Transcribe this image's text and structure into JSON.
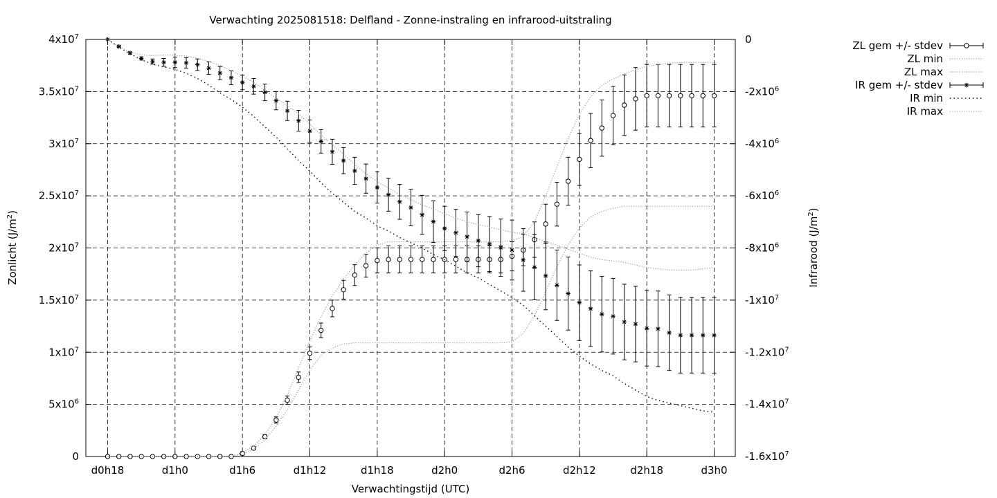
{
  "chart_data": {
    "type": "line",
    "title": "Verwachting 2025081518: Delfland - Zonne-instraling en infrarood-uitstraling",
    "xlabel": "Verwachtingstijd (UTC)",
    "ylabel": "Zonlicht (J/m²)",
    "ylabel_base": "Zonlicht (J/m",
    "ylabel_right": "Infrarood (J/m²)",
    "ylabel_right_base": "Infrarood (J/m",
    "ylabel_exp": "2",
    "ylabel_close": ")",
    "xlim": [
      18,
      72
    ],
    "ylim": [
      0,
      40000000
    ],
    "y2lim": [
      -16000000,
      0
    ],
    "grid": true,
    "legend_position": "top-right-outside",
    "x_ticks": [
      {
        "x": 18,
        "label": "d0h18"
      },
      {
        "x": 24,
        "label": "d1h0"
      },
      {
        "x": 30,
        "label": "d1h6"
      },
      {
        "x": 36,
        "label": "d1h12"
      },
      {
        "x": 42,
        "label": "d1h18"
      },
      {
        "x": 48,
        "label": "d2h0"
      },
      {
        "x": 54,
        "label": "d2h6"
      },
      {
        "x": 60,
        "label": "d2h12"
      },
      {
        "x": 66,
        "label": "d2h18"
      },
      {
        "x": 72,
        "label": "d3h0"
      }
    ],
    "y_ticks": [
      {
        "value": 0,
        "base": "0",
        "exp": ""
      },
      {
        "value": 5000000,
        "base": "5x10",
        "exp": "6"
      },
      {
        "value": 10000000,
        "base": "1x10",
        "exp": "7"
      },
      {
        "value": 15000000,
        "base": "1.5x10",
        "exp": "7"
      },
      {
        "value": 20000000,
        "base": "2x10",
        "exp": "7"
      },
      {
        "value": 25000000,
        "base": "2.5x10",
        "exp": "7"
      },
      {
        "value": 30000000,
        "base": "3x10",
        "exp": "7"
      },
      {
        "value": 35000000,
        "base": "3.5x10",
        "exp": "7"
      },
      {
        "value": 40000000,
        "base": "4x10",
        "exp": "7"
      }
    ],
    "y2_ticks": [
      {
        "value": 0,
        "base": "0",
        "exp": ""
      },
      {
        "value": -2000000,
        "base": "-2x10",
        "exp": "6"
      },
      {
        "value": -4000000,
        "base": "-4x10",
        "exp": "6"
      },
      {
        "value": -6000000,
        "base": "-6x10",
        "exp": "6"
      },
      {
        "value": -8000000,
        "base": "-8x10",
        "exp": "6"
      },
      {
        "value": -10000000,
        "base": "-1x10",
        "exp": "7"
      },
      {
        "value": -12000000,
        "base": "-1.2x10",
        "exp": "7"
      },
      {
        "value": -14000000,
        "base": "-1.4x10",
        "exp": "7"
      },
      {
        "value": -16000000,
        "base": "-1.6x10",
        "exp": "7"
      }
    ],
    "x": [
      18,
      19,
      20,
      21,
      22,
      23,
      24,
      25,
      26,
      27,
      28,
      29,
      30,
      31,
      32,
      33,
      34,
      35,
      36,
      37,
      38,
      39,
      40,
      41,
      42,
      43,
      44,
      45,
      46,
      47,
      48,
      49,
      50,
      51,
      52,
      53,
      54,
      55,
      56,
      57,
      58,
      59,
      60,
      61,
      62,
      63,
      64,
      65,
      66,
      67,
      68,
      69,
      70,
      71,
      72
    ],
    "series": [
      {
        "name": "ZL gem +/- stdev",
        "axis": "y",
        "marker": "circle",
        "values": [
          0,
          0,
          0,
          0,
          0,
          0,
          0,
          0,
          0,
          0,
          0,
          0,
          300000,
          800000,
          1900000,
          3500000,
          5400000,
          7600000,
          9900000,
          12100000,
          14200000,
          16000000,
          17400000,
          18300000,
          18800000,
          18900000,
          18900000,
          18900000,
          18900000,
          18900000,
          18900000,
          18900000,
          18900000,
          18900000,
          18900000,
          18900000,
          19200000,
          19800000,
          20800000,
          22300000,
          24200000,
          26400000,
          28500000,
          30300000,
          31500000,
          32700000,
          33700000,
          34300000,
          34600000,
          34600000,
          34600000,
          34600000,
          34600000,
          34600000,
          34600000
        ],
        "stdev": [
          0,
          0,
          0,
          0,
          0,
          0,
          0,
          0,
          0,
          0,
          0,
          0,
          150000,
          150000,
          200000,
          300000,
          400000,
          500000,
          600000,
          700000,
          800000,
          900000,
          1000000,
          1100000,
          1200000,
          1300000,
          1300000,
          1300000,
          1300000,
          1300000,
          1300000,
          1300000,
          1300000,
          1300000,
          1300000,
          1300000,
          1400000,
          1500000,
          1700000,
          1900000,
          2100000,
          2300000,
          2500000,
          2600000,
          2700000,
          2800000,
          2900000,
          3000000,
          3000000,
          3000000,
          3000000,
          3000000,
          3000000,
          3000000,
          3000000
        ]
      },
      {
        "name": "ZL min",
        "axis": "y",
        "style": "dotted-fine",
        "values": [
          0,
          0,
          0,
          0,
          0,
          0,
          0,
          0,
          0,
          0,
          0,
          0,
          200000,
          700000,
          1600000,
          2900000,
          4500000,
          6400000,
          8300000,
          9700000,
          10400000,
          10800000,
          10900000,
          10900000,
          10900000,
          10900000,
          10900000,
          10900000,
          10900000,
          10900000,
          10900000,
          10900000,
          10900000,
          10900000,
          10900000,
          10900000,
          11000000,
          11800000,
          13500000,
          15800000,
          18200000,
          20300000,
          21900000,
          23000000,
          23500000,
          23800000,
          24000000,
          24000000,
          24000000,
          24000000,
          24000000,
          24000000,
          24000000,
          24000000,
          24000000
        ]
      },
      {
        "name": "ZL max",
        "axis": "y",
        "style": "dotted-fine",
        "values": [
          0,
          0,
          0,
          0,
          0,
          0,
          0,
          0,
          0,
          0,
          0,
          0,
          400000,
          1000000,
          2100000,
          3700000,
          5900000,
          8500000,
          11100000,
          13400000,
          15400000,
          17000000,
          18400000,
          19500000,
          20300000,
          20600000,
          20600000,
          20600000,
          20600000,
          20600000,
          20600000,
          20600000,
          20600000,
          20600000,
          20600000,
          20600000,
          20700000,
          21100000,
          22500000,
          25000000,
          27800000,
          30500000,
          32800000,
          34500000,
          35600000,
          36200000,
          36700000,
          37100000,
          37400000,
          37600000,
          37700000,
          37800000,
          37800000,
          37800000,
          37800000
        ]
      },
      {
        "name": "IR gem +/- stdev",
        "axis": "y2",
        "marker": "star",
        "values": [
          0,
          -270000,
          -520000,
          -730000,
          -850000,
          -880000,
          -880000,
          -900000,
          -970000,
          -1100000,
          -1290000,
          -1470000,
          -1650000,
          -1800000,
          -2030000,
          -2350000,
          -2740000,
          -3120000,
          -3520000,
          -3910000,
          -4310000,
          -4650000,
          -5040000,
          -5340000,
          -5680000,
          -5960000,
          -6230000,
          -6450000,
          -6730000,
          -6990000,
          -7250000,
          -7420000,
          -7570000,
          -7720000,
          -7850000,
          -7990000,
          -8080000,
          -8460000,
          -8740000,
          -9070000,
          -9430000,
          -9750000,
          -10100000,
          -10330000,
          -10540000,
          -10620000,
          -10840000,
          -10920000,
          -11080000,
          -11100000,
          -11250000,
          -11350000,
          -11350000,
          -11350000,
          -11350000
        ],
        "stdev": [
          0,
          30000,
          40000,
          60000,
          100000,
          150000,
          200000,
          200000,
          220000,
          240000,
          250000,
          270000,
          280000,
          300000,
          320000,
          350000,
          370000,
          400000,
          430000,
          450000,
          480000,
          500000,
          520000,
          560000,
          600000,
          630000,
          670000,
          700000,
          750000,
          800000,
          850000,
          900000,
          950000,
          1000000,
          1050000,
          1100000,
          1150000,
          1200000,
          1250000,
          1300000,
          1350000,
          1400000,
          1450000,
          1450000,
          1450000,
          1450000,
          1450000,
          1450000,
          1450000,
          1450000,
          1450000,
          1450000,
          1450000,
          1450000,
          1450000
        ]
      },
      {
        "name": "IR min",
        "axis": "y2",
        "style": "dotted-coarse",
        "values": [
          0,
          -300000,
          -550000,
          -780000,
          -950000,
          -1050000,
          -1150000,
          -1300000,
          -1500000,
          -1750000,
          -2050000,
          -2300000,
          -2600000,
          -2950000,
          -3350000,
          -3750000,
          -4200000,
          -4650000,
          -5050000,
          -5500000,
          -5900000,
          -6250000,
          -6600000,
          -6850000,
          -7150000,
          -7350000,
          -7600000,
          -7800000,
          -8000000,
          -8250000,
          -8450000,
          -8700000,
          -8950000,
          -9150000,
          -9400000,
          -9650000,
          -9900000,
          -10200000,
          -10600000,
          -11000000,
          -11400000,
          -11800000,
          -12150000,
          -12450000,
          -12700000,
          -12900000,
          -13200000,
          -13450000,
          -13700000,
          -13850000,
          -13950000,
          -14050000,
          -14150000,
          -14250000,
          -14300000
        ]
      },
      {
        "name": "IR max",
        "axis": "y2",
        "style": "dotted-fine",
        "values": [
          0,
          -270000,
          -480000,
          -600000,
          -620000,
          -600000,
          -610000,
          -640000,
          -720000,
          -850000,
          -1000000,
          -1200000,
          -1400000,
          -1650000,
          -1950000,
          -2250000,
          -2550000,
          -2850000,
          -3250000,
          -3650000,
          -4050000,
          -4400000,
          -4800000,
          -5150000,
          -5450000,
          -5700000,
          -5950000,
          -6150000,
          -6350000,
          -6500000,
          -6700000,
          -6850000,
          -7000000,
          -7100000,
          -7200000,
          -7300000,
          -7400000,
          -7450000,
          -7600000,
          -7750000,
          -7900000,
          -8050000,
          -8200000,
          -8350000,
          -8450000,
          -8500000,
          -8550000,
          -8650000,
          -8750000,
          -8800000,
          -8850000,
          -8850000,
          -8850000,
          -8800000,
          -8750000
        ]
      }
    ]
  }
}
